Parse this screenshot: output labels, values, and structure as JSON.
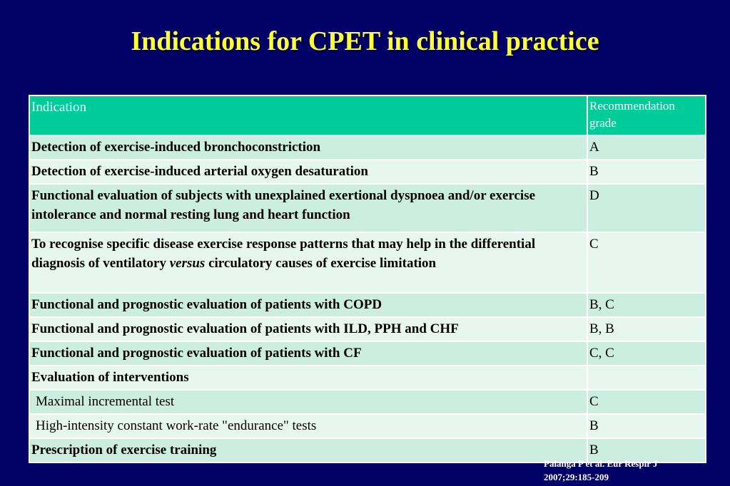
{
  "title": "Indications for CPET in clinical practice",
  "table": {
    "header": {
      "indication": "Indication",
      "grade": "Recommendation grade"
    },
    "rows": [
      {
        "indication": "Detection of exercise-induced bronchoconstriction",
        "grade": "A",
        "bold": true
      },
      {
        "indication": "Detection of exercise-induced arterial oxygen desaturation",
        "grade": "B",
        "bold": true
      },
      {
        "indication": "Functional evaluation of subjects with unexplained exertional dyspnoea and/or exercise intolerance and normal resting lung and heart function",
        "grade": "D",
        "bold": true
      },
      {
        "indication_before": "To recognise specific disease exercise response patterns that may help in the differential diagnosis of ventilatory ",
        "indication_italic": "versus",
        "indication_after": " circulatory causes of exercise limitation",
        "grade": "C",
        "bold": true
      },
      {
        "indication": "Functional and prognostic evaluation of patients with COPD",
        "grade": "B, C",
        "bold": true
      },
      {
        "indication": "Functional and prognostic evaluation of patients with ILD, PPH and CHF",
        "grade": "B, B",
        "bold": true
      },
      {
        "indication": "Functional and prognostic evaluation of patients with CF",
        "grade": "C, C",
        "bold": true
      },
      {
        "indication": "Evaluation of interventions",
        "grade": "",
        "bold": true
      },
      {
        "indication": "Maximal incremental test",
        "grade": "C",
        "bold": false
      },
      {
        "indication": "High-intensity constant work-rate \"endurance\" tests",
        "grade": "B",
        "bold": false
      },
      {
        "indication": "Prescription of exercise training",
        "grade": "B",
        "bold": true
      }
    ]
  },
  "citation": {
    "line1": "Palanga P et al. Eur Respir J",
    "line2": "2007;29:185-209"
  },
  "colors": {
    "background": "#000066",
    "title": "#ffff33",
    "header_bg": "#00cc99",
    "row_odd": "#cceee0",
    "row_even": "#e8f6f0"
  }
}
